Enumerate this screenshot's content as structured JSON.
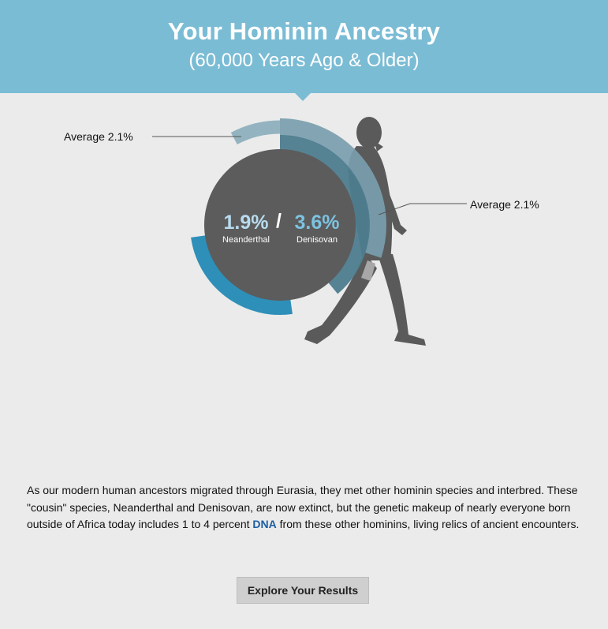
{
  "header": {
    "title": "Your Hominin Ancestry",
    "subtitle": "(60,000 Years Ago & Older)"
  },
  "callouts": {
    "left": "Average 2.1%",
    "right": "Average 2.1%"
  },
  "stats": {
    "neanderthal": {
      "value": "1.9%",
      "label": "Neanderthal"
    },
    "separator": "/",
    "denisovan": {
      "value": "3.6%",
      "label": "Denisovan"
    }
  },
  "description": {
    "before": "As our modern human ancestors migrated through Eurasia, they met other hominin species and interbred. These \"cousin\" species, Neanderthal and Denisovan, are now extinct, but the genetic makeup of nearly everyone born outside of Africa today includes 1 to 4 percent ",
    "link": "DNA",
    "after": " from these other hominins, living relics of ancient encounters."
  },
  "button": {
    "label": "Explore Your Results"
  },
  "colors": {
    "header": "#7bbcd5",
    "core_circle": "#5c5c5c",
    "neanderthal_arc": "#2e8fb8",
    "denisovan_arc": "#7a9eae",
    "average_arc": "#8fb0bf",
    "silhouette": "#5a5a5a"
  }
}
